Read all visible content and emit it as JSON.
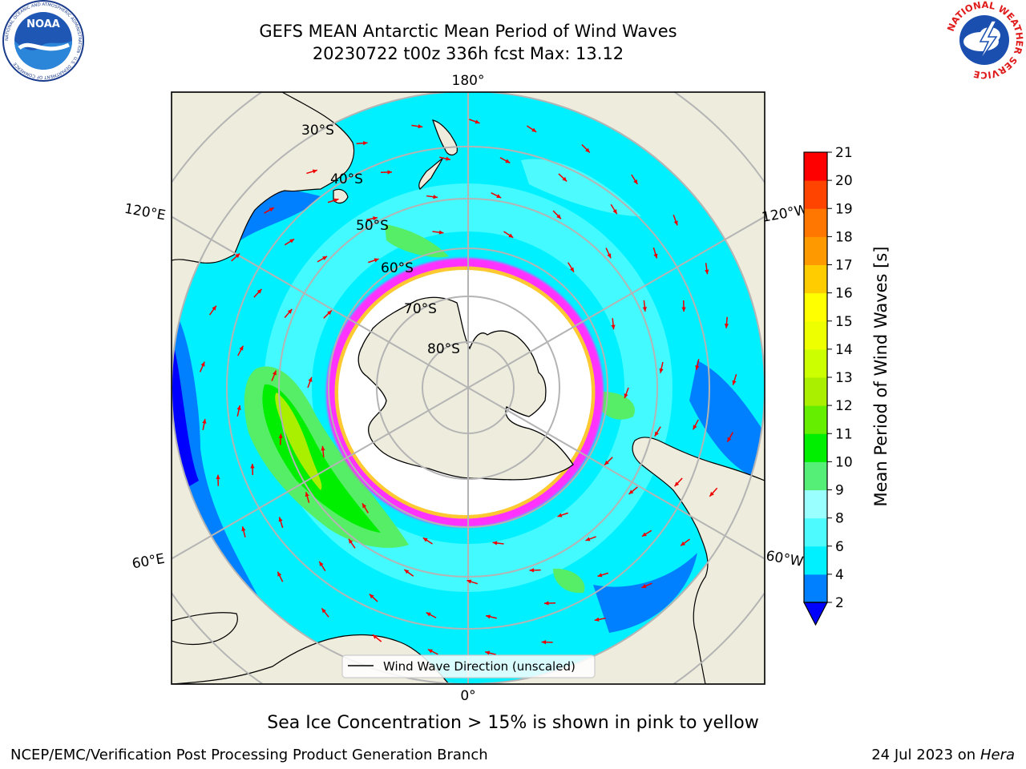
{
  "title": {
    "line1": "GEFS MEAN Antarctic Mean Period of Wind Waves",
    "line2": "20230722 t00z 336h fcst   Max: 13.12"
  },
  "map": {
    "projection": "south-polar-stereographic",
    "longitude_labels": [
      "180°",
      "120°E",
      "120°W",
      "60°E",
      "60°W",
      "0°"
    ],
    "latitude_labels": [
      "30°S",
      "40°S",
      "50°S",
      "60°S",
      "70°S",
      "80°S"
    ],
    "legend_label": "Wind Wave Direction (unscaled)",
    "colors": {
      "land": "#eeecdc",
      "ocean_4_6": "#00f0ff",
      "ocean_6_8": "#4dfbff",
      "ocean_2_4": "#0080ff",
      "ocean_lt2": "#0000ff",
      "wave_9_10": "#55ee66",
      "wave_10_11": "#00ee00",
      "wave_11_13": "#88dd00",
      "sea_ice_low": "#ff33ff",
      "sea_ice_high": "#ffee00",
      "arrow": "#ee0000",
      "grid": "#b4b4b4"
    }
  },
  "colorbar": {
    "label": "Mean Period of Wind Waves [s]",
    "ticks": [
      "2",
      "4",
      "6",
      "8",
      "9",
      "10",
      "11",
      "12",
      "13",
      "14",
      "15",
      "16",
      "17",
      "18",
      "19",
      "20",
      "21"
    ],
    "colors": [
      "#0080ff",
      "#00f0ff",
      "#4dfbff",
      "#99ffff",
      "#55ee77",
      "#00ee00",
      "#66ee00",
      "#aaee00",
      "#ccff00",
      "#eeff00",
      "#ffff00",
      "#ffcc00",
      "#ff9900",
      "#ff7700",
      "#ff4400",
      "#ff0000"
    ],
    "extend_color": "#0000ff"
  },
  "logos": {
    "noaa": {
      "text": "NOAA",
      "ring_text": "NATIONAL OCEANIC AND ATMOSPHERIC ADMINISTRATION · U.S. DEPARTMENT OF COMMERCE"
    },
    "nws": {
      "ring_text": "NATIONAL WEATHER SERVICE"
    }
  },
  "note": "Sea Ice Concentration > 15% is shown in pink to yellow",
  "footer": {
    "left": "NCEP/EMC/Verification Post Processing Product Generation Branch",
    "right_date": "24 Jul 2023 on ",
    "right_machine": "Hera"
  }
}
